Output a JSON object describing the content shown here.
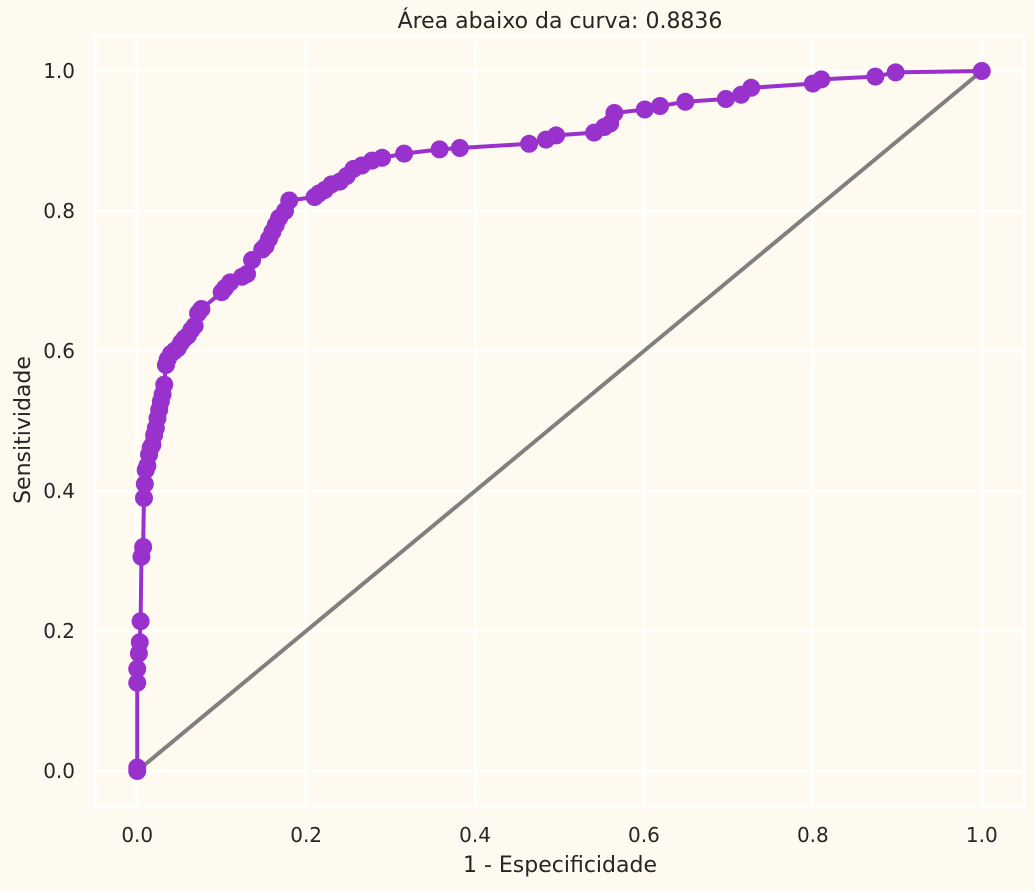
{
  "chart_data": {
    "type": "line",
    "title": "Área abaixo da curva: 0.8836",
    "xlabel": "1 - Especificidade",
    "ylabel": "Sensitividade",
    "xlim": [
      -0.05,
      1.05
    ],
    "ylim": [
      -0.05,
      1.05
    ],
    "xticks": [
      0.0,
      0.2,
      0.4,
      0.6,
      0.8,
      1.0
    ],
    "yticks": [
      0.0,
      0.2,
      0.4,
      0.6,
      0.8,
      1.0
    ],
    "xtick_labels": [
      "0.0",
      "0.2",
      "0.4",
      "0.6",
      "0.8",
      "1.0"
    ],
    "ytick_labels": [
      "0.0",
      "0.2",
      "0.4",
      "0.6",
      "0.8",
      "1.0"
    ],
    "grid": true,
    "colors": {
      "background": "#fefaef",
      "grid": "#ffffff",
      "roc": "#9932cc",
      "reference": "#808080",
      "text": "#262626"
    },
    "series": [
      {
        "role": "roc",
        "x": [
          0.0,
          0.0,
          0.0,
          0.0,
          0.002,
          0.003,
          0.004,
          0.005,
          0.007,
          0.008,
          0.009,
          0.01,
          0.012,
          0.014,
          0.016,
          0.018,
          0.02,
          0.022,
          0.024,
          0.026,
          0.028,
          0.03,
          0.032,
          0.034,
          0.036,
          0.04,
          0.044,
          0.048,
          0.052,
          0.056,
          0.06,
          0.064,
          0.068,
          0.072,
          0.076,
          0.1,
          0.104,
          0.11,
          0.124,
          0.13,
          0.136,
          0.148,
          0.152,
          0.156,
          0.16,
          0.164,
          0.168,
          0.175,
          0.18,
          0.21,
          0.215,
          0.222,
          0.23,
          0.24,
          0.248,
          0.256,
          0.266,
          0.278,
          0.29,
          0.316,
          0.358,
          0.382,
          0.464,
          0.484,
          0.496,
          0.541,
          0.553,
          0.56,
          0.565,
          0.601,
          0.619,
          0.649,
          0.697,
          0.715,
          0.727,
          0.8,
          0.81,
          0.874,
          0.898,
          1.0
        ],
        "y": [
          0.0,
          0.005,
          0.126,
          0.146,
          0.168,
          0.184,
          0.214,
          0.306,
          0.32,
          0.39,
          0.41,
          0.43,
          0.436,
          0.452,
          0.462,
          0.466,
          0.48,
          0.49,
          0.504,
          0.516,
          0.528,
          0.538,
          0.552,
          0.58,
          0.588,
          0.596,
          0.6,
          0.604,
          0.612,
          0.618,
          0.622,
          0.63,
          0.636,
          0.654,
          0.66,
          0.684,
          0.69,
          0.698,
          0.706,
          0.71,
          0.73,
          0.745,
          0.75,
          0.76,
          0.77,
          0.78,
          0.79,
          0.8,
          0.815,
          0.82,
          0.825,
          0.83,
          0.838,
          0.842,
          0.85,
          0.86,
          0.865,
          0.872,
          0.876,
          0.882,
          0.888,
          0.89,
          0.896,
          0.902,
          0.908,
          0.912,
          0.92,
          0.925,
          0.94,
          0.945,
          0.95,
          0.956,
          0.96,
          0.966,
          0.976,
          0.982,
          0.988,
          0.992,
          0.998,
          1.0
        ]
      },
      {
        "role": "reference",
        "x": [
          0.0,
          1.0
        ],
        "y": [
          0.0,
          1.0
        ]
      }
    ]
  }
}
